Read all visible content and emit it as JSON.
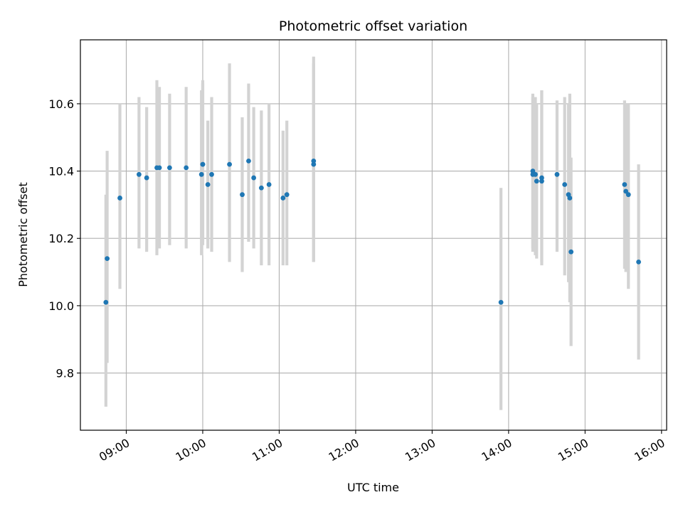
{
  "chart_data": {
    "type": "scatter",
    "title": "Photometric offset variation",
    "xlabel": "UTC time",
    "ylabel": "Photometric offset",
    "x_axis_type": "time",
    "xlim": [
      "08:24",
      "16:04"
    ],
    "ylim": [
      9.63,
      10.79
    ],
    "grid": true,
    "x_ticks": [
      "09:00",
      "10:00",
      "11:00",
      "12:00",
      "13:00",
      "14:00",
      "15:00",
      "16:00"
    ],
    "y_ticks": [
      "9.8",
      "10.0",
      "10.2",
      "10.4",
      "10.6"
    ],
    "colors": {
      "points": "#1f77b4",
      "errorbars": "#d3d3d3",
      "grid": "#b0b0b0"
    },
    "points": [
      {
        "x": "08:44",
        "y": 10.01,
        "err_low": 9.7,
        "err_high": 10.33
      },
      {
        "x": "08:45",
        "y": 10.14,
        "err_low": 9.83,
        "err_high": 10.46
      },
      {
        "x": "08:55",
        "y": 10.32,
        "err_low": 10.05,
        "err_high": 10.6
      },
      {
        "x": "09:10",
        "y": 10.39,
        "err_low": 10.17,
        "err_high": 10.62
      },
      {
        "x": "09:16",
        "y": 10.38,
        "err_low": 10.16,
        "err_high": 10.59
      },
      {
        "x": "09:24",
        "y": 10.41,
        "err_low": 10.15,
        "err_high": 10.67
      },
      {
        "x": "09:26",
        "y": 10.41,
        "err_low": 10.17,
        "err_high": 10.65
      },
      {
        "x": "09:34",
        "y": 10.41,
        "err_low": 10.18,
        "err_high": 10.63
      },
      {
        "x": "09:47",
        "y": 10.41,
        "err_low": 10.17,
        "err_high": 10.65
      },
      {
        "x": "09:59",
        "y": 10.39,
        "err_low": 10.15,
        "err_high": 10.64
      },
      {
        "x": "10:00",
        "y": 10.42,
        "err_low": 10.18,
        "err_high": 10.67
      },
      {
        "x": "10:00",
        "y": 10.42,
        "err_low": 10.19,
        "err_high": 10.66
      },
      {
        "x": "10:04",
        "y": 10.36,
        "err_low": 10.17,
        "err_high": 10.55
      },
      {
        "x": "10:07",
        "y": 10.39,
        "err_low": 10.16,
        "err_high": 10.62
      },
      {
        "x": "10:21",
        "y": 10.42,
        "err_low": 10.13,
        "err_high": 10.72
      },
      {
        "x": "10:31",
        "y": 10.33,
        "err_low": 10.1,
        "err_high": 10.56
      },
      {
        "x": "10:36",
        "y": 10.43,
        "err_low": 10.19,
        "err_high": 10.66
      },
      {
        "x": "10:40",
        "y": 10.38,
        "err_low": 10.17,
        "err_high": 10.59
      },
      {
        "x": "10:46",
        "y": 10.35,
        "err_low": 10.12,
        "err_high": 10.58
      },
      {
        "x": "10:52",
        "y": 10.36,
        "err_low": 10.12,
        "err_high": 10.6
      },
      {
        "x": "11:03",
        "y": 10.32,
        "err_low": 10.12,
        "err_high": 10.52
      },
      {
        "x": "11:06",
        "y": 10.33,
        "err_low": 10.12,
        "err_high": 10.55
      },
      {
        "x": "11:27",
        "y": 10.43,
        "err_low": 10.13,
        "err_high": 10.74
      },
      {
        "x": "11:27",
        "y": 10.42,
        "err_low": 10.13,
        "err_high": 10.72
      },
      {
        "x": "13:54",
        "y": 10.01,
        "err_low": 9.69,
        "err_high": 10.35
      },
      {
        "x": "14:19",
        "y": 10.4,
        "err_low": 10.17,
        "err_high": 10.62
      },
      {
        "x": "14:19",
        "y": 10.39,
        "err_low": 10.16,
        "err_high": 10.63
      },
      {
        "x": "14:21",
        "y": 10.39,
        "err_low": 10.15,
        "err_high": 10.62
      },
      {
        "x": "14:22",
        "y": 10.37,
        "err_low": 10.14,
        "err_high": 10.6
      },
      {
        "x": "14:26",
        "y": 10.37,
        "err_low": 10.12,
        "err_high": 10.64
      },
      {
        "x": "14:26",
        "y": 10.38,
        "err_low": 10.13,
        "err_high": 10.64
      },
      {
        "x": "14:38",
        "y": 10.39,
        "err_low": 10.16,
        "err_high": 10.61
      },
      {
        "x": "14:44",
        "y": 10.36,
        "err_low": 10.09,
        "err_high": 10.62
      },
      {
        "x": "14:47",
        "y": 10.33,
        "err_low": 10.07,
        "err_high": 10.6
      },
      {
        "x": "14:48",
        "y": 10.32,
        "err_low": 10.01,
        "err_high": 10.63
      },
      {
        "x": "14:49",
        "y": 10.16,
        "err_low": 9.88,
        "err_high": 10.44
      },
      {
        "x": "15:31",
        "y": 10.36,
        "err_low": 10.11,
        "err_high": 10.61
      },
      {
        "x": "15:32",
        "y": 10.34,
        "err_low": 10.1,
        "err_high": 10.6
      },
      {
        "x": "15:34",
        "y": 10.33,
        "err_low": 10.05,
        "err_high": 10.6
      },
      {
        "x": "15:42",
        "y": 10.13,
        "err_low": 9.84,
        "err_high": 10.42
      }
    ]
  }
}
